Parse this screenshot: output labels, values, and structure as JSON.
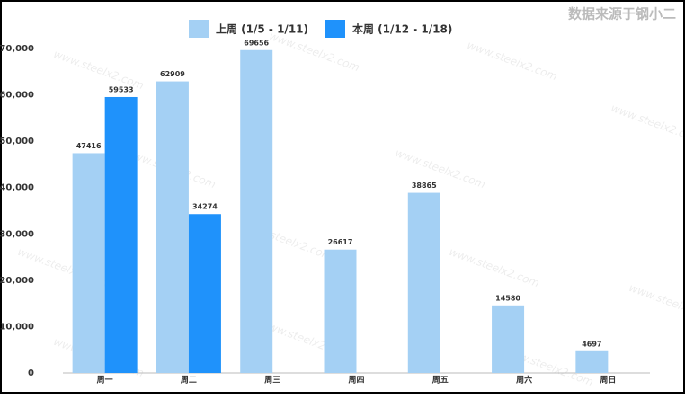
{
  "chart_data": {
    "type": "bar",
    "source": "数据来源于钢小二",
    "watermark": "www.steelx2.com",
    "categories": [
      "周一",
      "周二",
      "周三",
      "周四",
      "周五",
      "周六",
      "周日"
    ],
    "series": [
      {
        "name": "上周 (1/5 - 1/11)",
        "color": "#a4d0f4",
        "values": [
          47416,
          62909,
          69656,
          26617,
          38865,
          14580,
          4697
        ]
      },
      {
        "name": "本周 (1/12 - 1/18)",
        "color": "#1f92fb",
        "values": [
          59533,
          34274,
          null,
          null,
          null,
          null,
          null
        ]
      }
    ],
    "ylim": [
      0,
      70000
    ],
    "yticks": [
      0,
      {
        "value": 10000,
        "label": "10,000"
      },
      {
        "value": 20000,
        "label": "20,000"
      },
      {
        "value": 30000,
        "label": "30,000"
      },
      {
        "value": 40000,
        "label": "40,000"
      },
      {
        "value": 50000,
        "label": "50,000"
      },
      {
        "value": 60000,
        "label": "60,000"
      },
      {
        "value": 70000,
        "label": "70,000"
      }
    ],
    "grid": false,
    "legend": "top",
    "show_values": true
  }
}
